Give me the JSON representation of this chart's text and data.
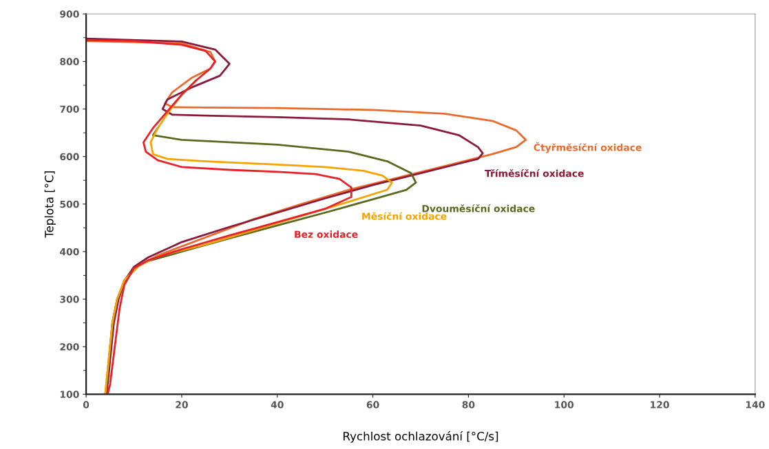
{
  "chart_data": {
    "type": "line",
    "xlabel": "Rychlost ochlazování [°C/s]",
    "ylabel": "Teplota [°C]",
    "xlim": [
      0,
      140
    ],
    "ylim": [
      100,
      900
    ],
    "xticks": [
      0,
      20,
      40,
      60,
      80,
      100,
      120,
      140
    ],
    "yticks": [
      100,
      200,
      300,
      400,
      500,
      600,
      700,
      800,
      900
    ],
    "grid": false,
    "legend": false,
    "marker": "none",
    "line_style": "solid",
    "series": [
      {
        "name": "Čtyřměsíční oxidace",
        "color": "#ea6a2c",
        "x": [
          0,
          20,
          26,
          27,
          26,
          22,
          18,
          16.5,
          18,
          25,
          40,
          60,
          75,
          85,
          90,
          92,
          90,
          85,
          75,
          65,
          55,
          45,
          35,
          25,
          15,
          11,
          8,
          6.5,
          5.5,
          4.5,
          4
        ],
        "values": [
          843,
          838,
          820,
          800,
          785,
          765,
          735,
          712,
          704,
          703,
          702,
          698,
          690,
          675,
          655,
          635,
          620,
          605,
          580,
          555,
          530,
          500,
          468,
          430,
          392,
          370,
          340,
          300,
          250,
          150,
          100
        ]
      },
      {
        "name": "Tříměsíční oxidace",
        "color": "#8b1a3a",
        "x": [
          0,
          20,
          27,
          30,
          28,
          22,
          17,
          16,
          18,
          25,
          40,
          55,
          70,
          78,
          82,
          83,
          82,
          78,
          70,
          60,
          50,
          40,
          30,
          20,
          13,
          10,
          8,
          6.8,
          5.8,
          4.8,
          4.3
        ],
        "values": [
          848,
          842,
          825,
          795,
          770,
          745,
          720,
          700,
          688,
          686,
          683,
          678,
          665,
          645,
          620,
          607,
          595,
          585,
          565,
          540,
          512,
          482,
          452,
          420,
          388,
          368,
          338,
          300,
          250,
          150,
          100
        ]
      },
      {
        "name": "Dvouměsíční oxidace",
        "color": "#5a6820",
        "x": [
          15,
          14,
          20,
          40,
          55,
          63,
          68,
          69,
          67,
          60,
          50,
          40,
          30,
          20,
          13,
          10,
          8,
          6.5,
          5.5,
          4.6,
          4.1
        ],
        "values": [
          660,
          645,
          635,
          625,
          610,
          590,
          565,
          545,
          530,
          510,
          482,
          455,
          428,
          400,
          380,
          365,
          335,
          300,
          250,
          150,
          100
        ]
      },
      {
        "name": "Měsíční oxidace",
        "color": "#f5a300",
        "x": [
          23,
          20,
          17,
          15,
          13.5,
          14,
          17,
          25,
          40,
          50,
          58,
          62,
          64,
          63,
          55,
          45,
          35,
          25,
          15,
          11,
          8,
          6.5,
          5.5,
          4.5,
          4
        ],
        "values": [
          760,
          730,
          690,
          660,
          630,
          605,
          595,
          590,
          583,
          578,
          570,
          560,
          545,
          530,
          505,
          475,
          445,
          415,
          390,
          370,
          340,
          300,
          250,
          150,
          100
        ]
      },
      {
        "name": "Bez oxidace",
        "color": "#e8202a",
        "x": [
          0,
          10,
          20,
          25,
          27,
          26,
          23,
          20,
          17,
          14,
          12,
          12.5,
          15,
          20,
          30,
          40,
          48,
          53,
          55.5,
          55.5,
          50,
          40,
          30,
          20,
          13,
          10,
          8,
          7,
          6,
          5,
          4.5
        ],
        "values": [
          845,
          843,
          835,
          822,
          800,
          785,
          760,
          730,
          695,
          660,
          630,
          610,
          592,
          578,
          572,
          568,
          563,
          553,
          535,
          515,
          490,
          462,
          434,
          405,
          382,
          365,
          330,
          280,
          200,
          120,
          100
        ]
      }
    ]
  }
}
